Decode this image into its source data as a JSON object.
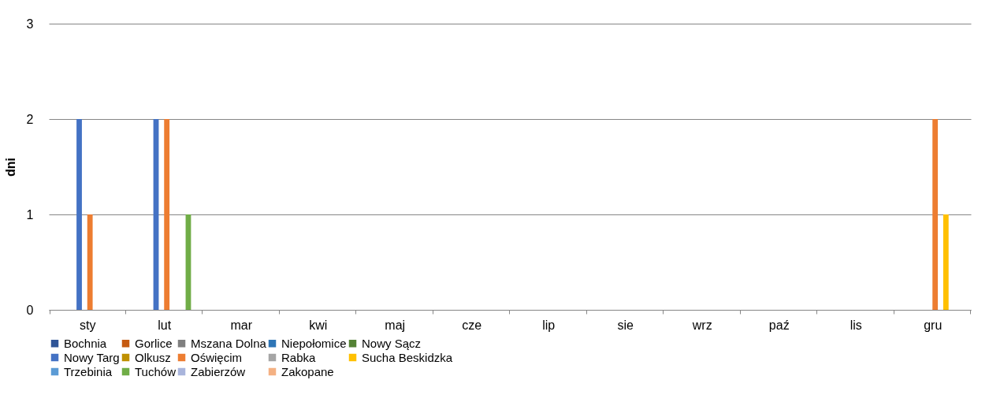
{
  "chart_data": {
    "type": "bar",
    "ylabel": "dni",
    "categories": [
      "sty",
      "lut",
      "mar",
      "kwi",
      "maj",
      "cze",
      "lip",
      "sie",
      "wrz",
      "paź",
      "lis",
      "gru"
    ],
    "ylim": [
      0,
      3
    ],
    "yticks": [
      0,
      1,
      2,
      3
    ],
    "grid": "y",
    "legend": "bottom",
    "series": [
      {
        "name": "Bochnia",
        "color": "#2f5597",
        "values": [
          0,
          0,
          0,
          0,
          0,
          0,
          0,
          0,
          0,
          0,
          0,
          0
        ]
      },
      {
        "name": "Gorlice",
        "color": "#c55a11",
        "values": [
          0,
          0,
          0,
          0,
          0,
          0,
          0,
          0,
          0,
          0,
          0,
          0
        ]
      },
      {
        "name": "Mszana Dolna",
        "color": "#7f7f7f",
        "values": [
          0,
          0,
          0,
          0,
          0,
          0,
          0,
          0,
          0,
          0,
          0,
          0
        ]
      },
      {
        "name": "Niepołomice",
        "color": "#2e75b6",
        "values": [
          0,
          0,
          0,
          0,
          0,
          0,
          0,
          0,
          0,
          0,
          0,
          0
        ]
      },
      {
        "name": "Nowy Sącz",
        "color": "#548235",
        "values": [
          0,
          0,
          0,
          0,
          0,
          0,
          0,
          0,
          0,
          0,
          0,
          0
        ]
      },
      {
        "name": "Nowy Targ",
        "color": "#4472c4",
        "values": [
          2,
          2,
          0,
          0,
          0,
          0,
          0,
          0,
          0,
          0,
          0,
          0
        ]
      },
      {
        "name": "Olkusz",
        "color": "#bf9000",
        "values": [
          0,
          0,
          0,
          0,
          0,
          0,
          0,
          0,
          0,
          0,
          0,
          0
        ]
      },
      {
        "name": "Oświęcim",
        "color": "#ed7d31",
        "values": [
          1,
          2,
          0,
          0,
          0,
          0,
          0,
          0,
          0,
          0,
          0,
          2
        ]
      },
      {
        "name": "Rabka",
        "color": "#a5a5a5",
        "values": [
          0,
          0,
          0,
          0,
          0,
          0,
          0,
          0,
          0,
          0,
          0,
          0
        ]
      },
      {
        "name": "Sucha Beskidzka",
        "color": "#ffc000",
        "values": [
          0,
          0,
          0,
          0,
          0,
          0,
          0,
          0,
          0,
          0,
          0,
          1
        ]
      },
      {
        "name": "Trzebinia",
        "color": "#5b9bd5",
        "values": [
          0,
          0,
          0,
          0,
          0,
          0,
          0,
          0,
          0,
          0,
          0,
          0
        ]
      },
      {
        "name": "Tuchów",
        "color": "#70ad47",
        "values": [
          0,
          1,
          0,
          0,
          0,
          0,
          0,
          0,
          0,
          0,
          0,
          0
        ]
      },
      {
        "name": "Zabierzów",
        "color": "#a9b5dc",
        "values": [
          0,
          0,
          0,
          0,
          0,
          0,
          0,
          0,
          0,
          0,
          0,
          0
        ]
      },
      {
        "name": "Zakopane",
        "color": "#f4b183",
        "values": [
          0,
          0,
          0,
          0,
          0,
          0,
          0,
          0,
          0,
          0,
          0,
          0
        ]
      }
    ]
  }
}
